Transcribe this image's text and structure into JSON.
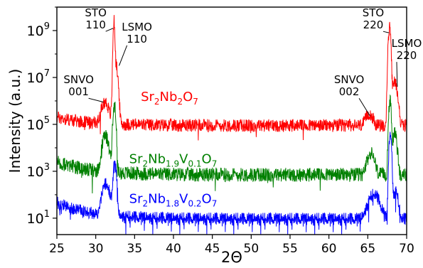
{
  "chart_data": {
    "type": "line",
    "xlabel": "2Θ",
    "ylabel": "Intensity (a.u.)",
    "xlim": [
      25,
      70
    ],
    "ylim_log10": [
      0.3,
      10.0
    ],
    "y_scale": "log",
    "grid": false,
    "x_ticks": [
      25,
      30,
      35,
      40,
      45,
      50,
      55,
      60,
      65,
      70
    ],
    "y_ticks": [
      {
        "exp": 1,
        "base": "10",
        "sup": "1"
      },
      {
        "exp": 3,
        "base": "10",
        "sup": "3"
      },
      {
        "exp": 5,
        "base": "10",
        "sup": "5"
      },
      {
        "exp": 7,
        "base": "10",
        "sup": "7"
      },
      {
        "exp": 9,
        "base": "10",
        "sup": "9"
      }
    ],
    "series": [
      {
        "color": "#ff0000",
        "label": {
          "segments": [
            [
              "Sr",
              "n"
            ],
            [
              "2",
              "sub"
            ],
            [
              "Nb",
              "n"
            ],
            [
              "2",
              "sub"
            ],
            [
              "O",
              "n"
            ],
            [
              "7",
              "sub"
            ]
          ],
          "x": 35.8,
          "logy": 6.0
        },
        "baseline_log10": 4.95,
        "noise": 0.55,
        "tail": 0.35,
        "peaks": [
          {
            "x": 31.2,
            "height_log10": 5.9,
            "width": 0.35
          },
          {
            "x": 32.35,
            "height_log10": 9.4,
            "width": 0.07
          },
          {
            "x": 32.55,
            "height_log10": 7.6,
            "width": 0.18
          },
          {
            "x": 65.2,
            "height_log10": 5.3,
            "width": 0.35
          },
          {
            "x": 67.8,
            "height_log10": 9.1,
            "width": 0.1
          },
          {
            "x": 68.45,
            "height_log10": 6.8,
            "width": 0.25
          }
        ]
      },
      {
        "color": "#008000",
        "label": {
          "segments": [
            [
              "Sr",
              "n"
            ],
            [
              "2",
              "sub"
            ],
            [
              "Nb",
              "n"
            ],
            [
              "1.9",
              "sub"
            ],
            [
              "V",
              "n"
            ],
            [
              "0.1",
              "sub"
            ],
            [
              "O",
              "n"
            ],
            [
              "7",
              "sub"
            ]
          ],
          "x": 34.3,
          "logy": 3.35
        },
        "baseline_log10": 2.85,
        "noise": 0.6,
        "tail": 0.55,
        "peaks": [
          {
            "x": 31.25,
            "height_log10": 4.5,
            "width": 0.3
          },
          {
            "x": 32.4,
            "height_log10": 5.8,
            "width": 0.12
          },
          {
            "x": 65.4,
            "height_log10": 3.7,
            "width": 0.35
          },
          {
            "x": 67.85,
            "height_log10": 6.0,
            "width": 0.1
          },
          {
            "x": 68.45,
            "height_log10": 4.6,
            "width": 0.2
          }
        ]
      },
      {
        "color": "#0000ff",
        "label": {
          "segments": [
            [
              "Sr",
              "n"
            ],
            [
              "2",
              "sub"
            ],
            [
              "Nb",
              "n"
            ],
            [
              "1.8",
              "sub"
            ],
            [
              "V",
              "n"
            ],
            [
              "0.2",
              "sub"
            ],
            [
              "O",
              "n"
            ],
            [
              "7",
              "sub"
            ]
          ],
          "x": 34.3,
          "logy": 1.65
        },
        "baseline_log10": 0.95,
        "noise": 0.55,
        "tail": 0.7,
        "peaks": [
          {
            "x": 31.3,
            "height_log10": 2.45,
            "width": 0.35
          },
          {
            "x": 32.45,
            "height_log10": 3.25,
            "width": 0.15
          },
          {
            "x": 65.8,
            "height_log10": 1.95,
            "width": 0.55
          },
          {
            "x": 67.9,
            "height_log10": 4.55,
            "width": 0.1
          },
          {
            "x": 68.55,
            "height_log10": 2.1,
            "width": 0.25
          }
        ]
      }
    ],
    "annotations": [
      {
        "lines": [
          "STO",
          "110"
        ],
        "x": 30.0,
        "logy": 9.6,
        "arrow_to": {
          "x": 32.25,
          "logy": 9.1
        }
      },
      {
        "lines": [
          "LSMO",
          "110"
        ],
        "x": 35.3,
        "logy": 9.0,
        "arrow_to": {
          "x": 33.0,
          "logy": 7.5
        }
      },
      {
        "lines": [
          "SNVO",
          "001"
        ],
        "x": 27.8,
        "logy": 6.75,
        "arrow_to": {
          "x": 31.0,
          "logy": 5.95
        }
      },
      {
        "lines": [
          "STO",
          "220"
        ],
        "x": 65.7,
        "logy": 9.6,
        "arrow_to": {
          "x": 67.75,
          "logy": 8.9
        }
      },
      {
        "lines": [
          "LSMO",
          "220"
        ],
        "x": 70.0,
        "logy": 8.3,
        "arrow_to": {
          "x": 68.8,
          "logy": 6.6
        }
      },
      {
        "lines": [
          "SNVO",
          "002"
        ],
        "x": 62.6,
        "logy": 6.75,
        "arrow_to": {
          "x": 65.3,
          "logy": 5.35
        }
      }
    ]
  }
}
